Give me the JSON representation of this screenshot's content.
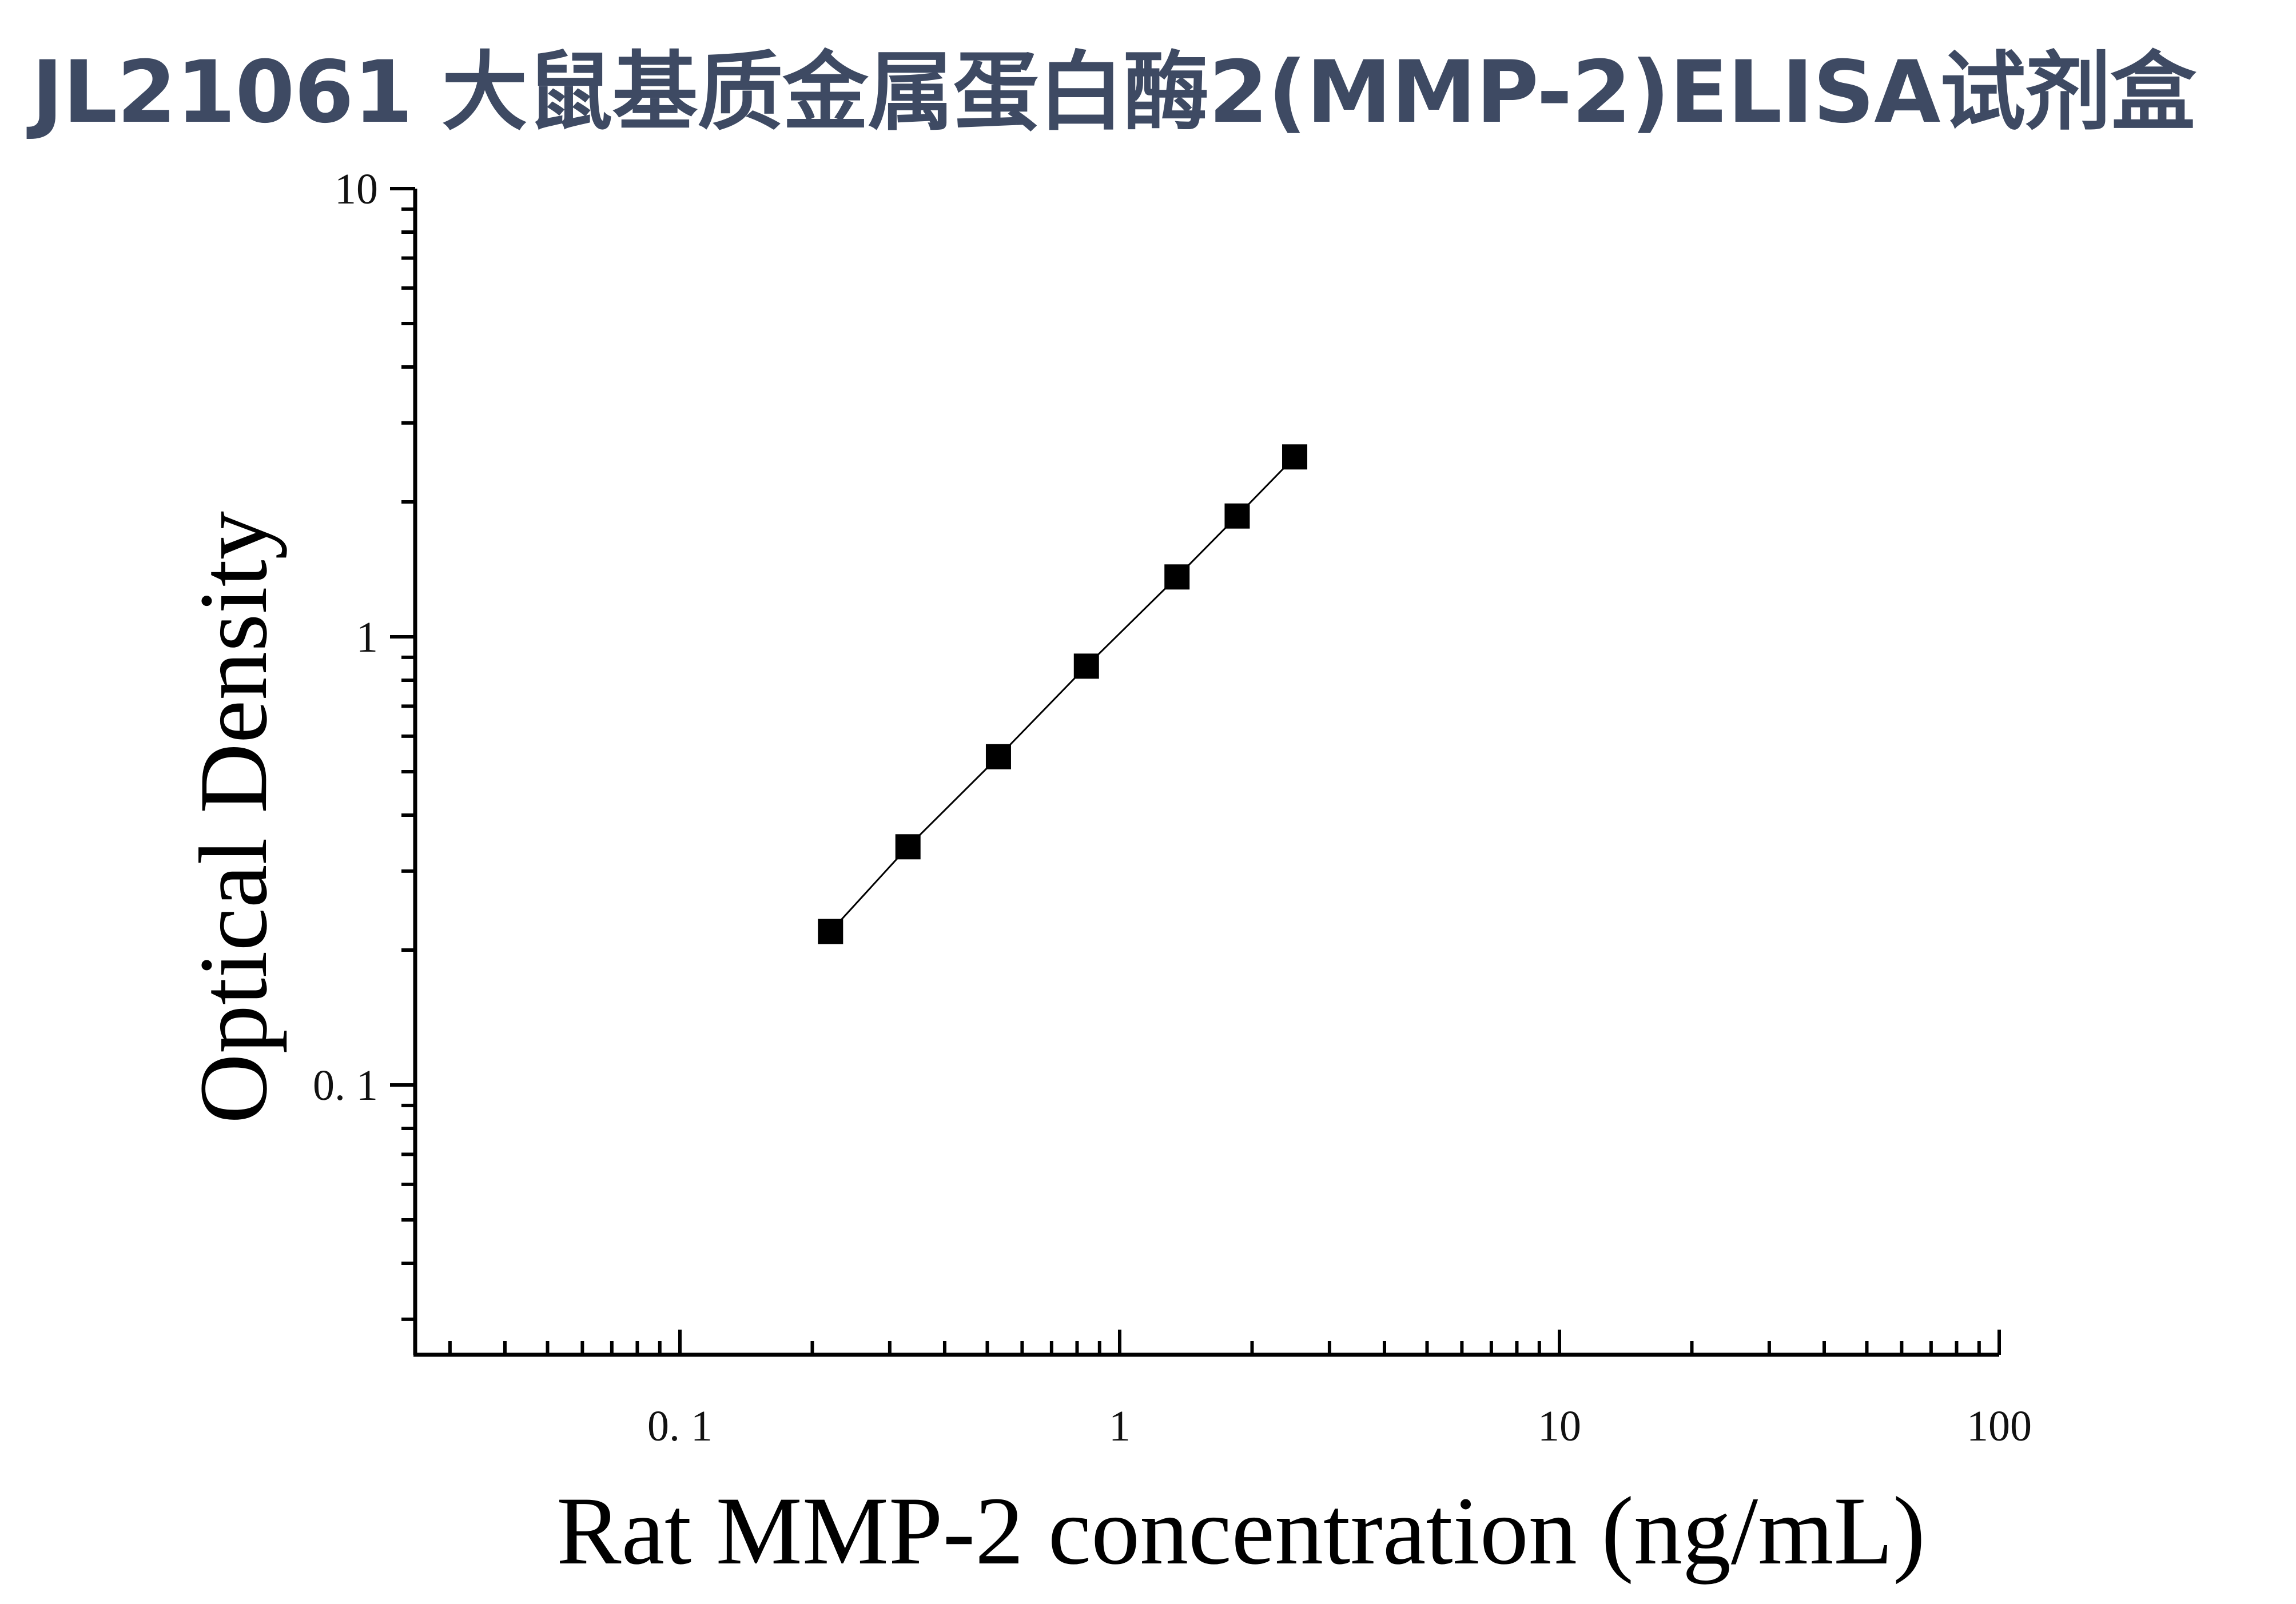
{
  "title": "JL21061 大鼠基质金属蛋白酶2(MMP-2)ELISA试剂盒",
  "chart_data": {
    "type": "scatter",
    "xscale": "log",
    "yscale": "log",
    "xlim": [
      0.025,
      100
    ],
    "ylim": [
      0.025,
      10
    ],
    "xlabel": "Rat MMP-2 concentration (ng/mL)",
    "ylabel": "Optical Density",
    "xticks": [
      0.1,
      1,
      10,
      100
    ],
    "xtick_labels": [
      "0. 1",
      "1",
      "10",
      "100"
    ],
    "yticks": [
      0.1,
      1,
      10
    ],
    "ytick_labels": [
      "0. 1",
      "1",
      "10"
    ],
    "grid": false,
    "marker": "square",
    "marker_color": "#000000",
    "line_color": "#000000",
    "series": [
      {
        "x": [
          0.22,
          0.33,
          0.53,
          0.84,
          1.35,
          1.85,
          2.5
        ],
        "y": [
          0.22,
          0.34,
          0.54,
          0.86,
          1.36,
          1.86,
          2.52
        ]
      }
    ]
  }
}
